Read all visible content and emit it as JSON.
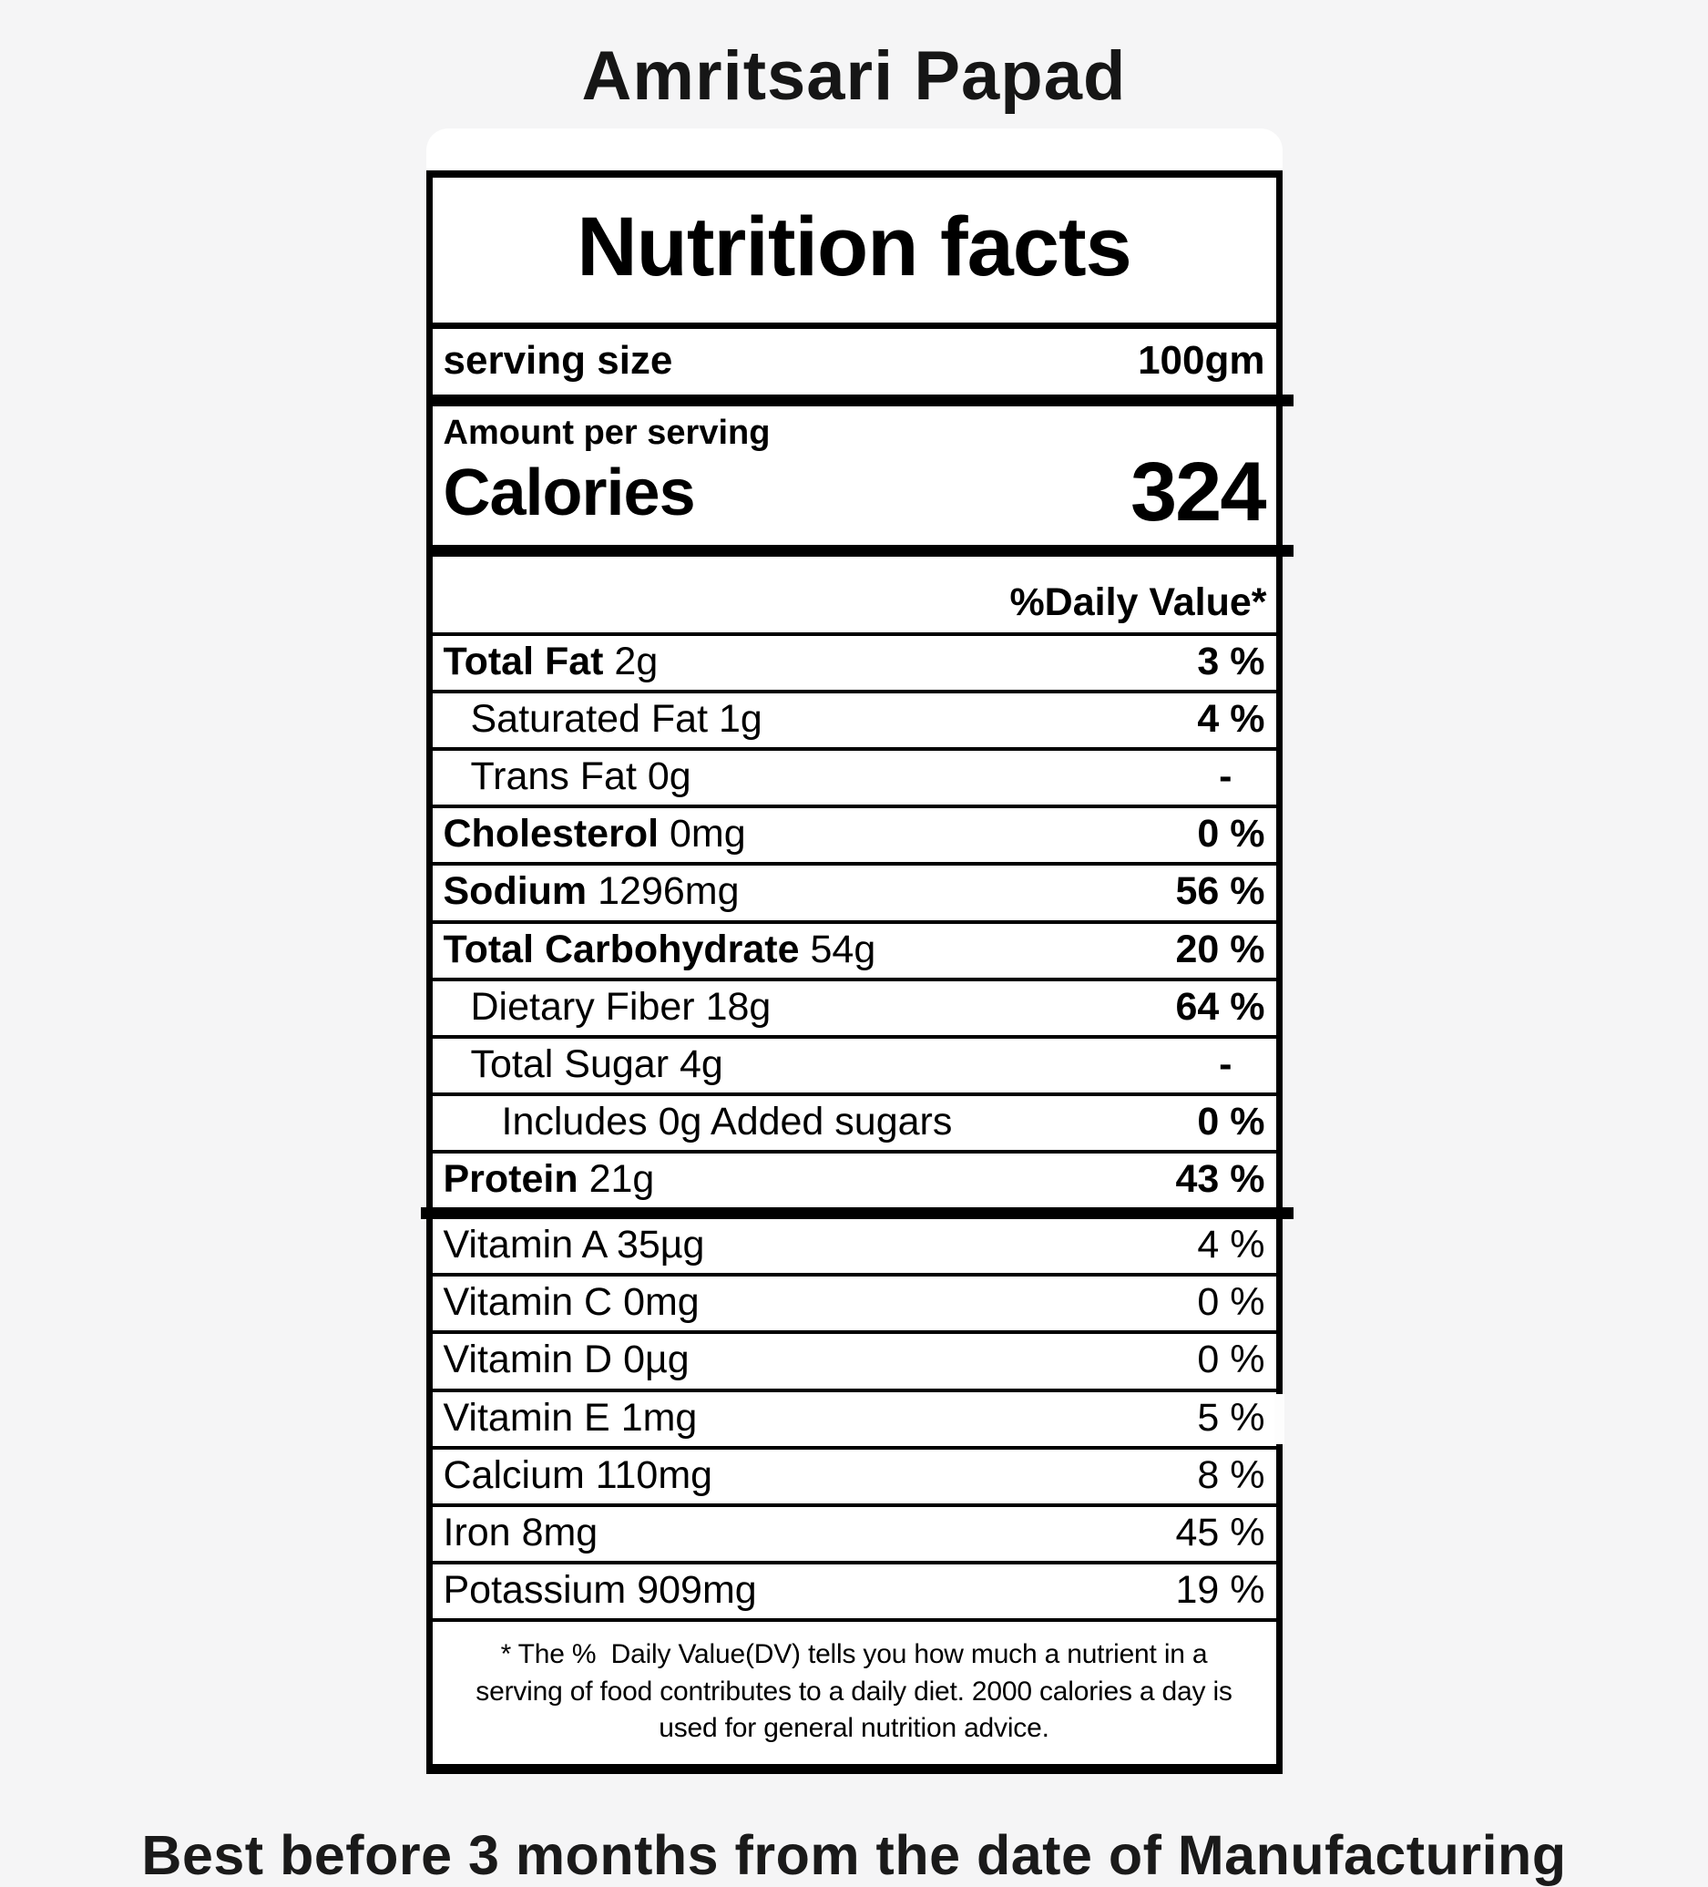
{
  "title": "Amritsari Papad",
  "footer_note": "Best before 3 months from the date of Manufacturing",
  "label": {
    "heading": "Nutrition facts",
    "serving_size_label": "serving size",
    "serving_size_value": "100gm",
    "amount_per_serving": "Amount per serving",
    "calories_label": "Calories",
    "calories_value": "324",
    "daily_value_header": "%Daily Value*",
    "rows": [
      {
        "name": "Total Fat",
        "amount": "2g",
        "dv": "3 %"
      },
      {
        "name": "Saturated Fat",
        "amount": "1g",
        "dv": "4 %"
      },
      {
        "name": "Trans Fat",
        "amount": "0g",
        "dv": "-"
      },
      {
        "name": "Cholesterol",
        "amount": "0mg",
        "dv": "0 %"
      },
      {
        "name": "Sodium",
        "amount": "1296mg",
        "dv": "56 %"
      },
      {
        "name": "Total Carbohydrate",
        "amount": "54g",
        "dv": "20 %"
      },
      {
        "name": "Dietary Fiber",
        "amount": "18g",
        "dv": "64 %"
      },
      {
        "name": "Total Sugar",
        "amount": "4g",
        "dv": "-"
      },
      {
        "name": "Includes 0g Added sugars",
        "amount": "",
        "dv": "0 %"
      },
      {
        "name": "Protein",
        "amount": "21g",
        "dv": "43 %"
      }
    ],
    "micro_rows": [
      {
        "name": "Vitamin A",
        "amount": "35µg",
        "dv": "4 %"
      },
      {
        "name": "Vitamin C",
        "amount": "0mg",
        "dv": "0 %"
      },
      {
        "name": "Vitamin D",
        "amount": "0µg",
        "dv": "0 %"
      },
      {
        "name": "Vitamin E",
        "amount": "1mg",
        "dv": "5 %"
      },
      {
        "name": "Calcium",
        "amount": "110mg",
        "dv": "8 %"
      },
      {
        "name": "Iron",
        "amount": "8mg",
        "dv": "45 %"
      },
      {
        "name": "Potassium",
        "amount": "909mg",
        "dv": "19 %"
      }
    ],
    "footnote": "* The %  Daily Value(DV) tells you how much a nutrient in a\nserving of food contributes to a daily diet. 2000 calories a day is\nused for general nutrition advice."
  },
  "colors": {
    "page_bg": "#f5f5f6",
    "card_bg": "#ffffff",
    "label_border": "#000000",
    "text": "#000000"
  }
}
